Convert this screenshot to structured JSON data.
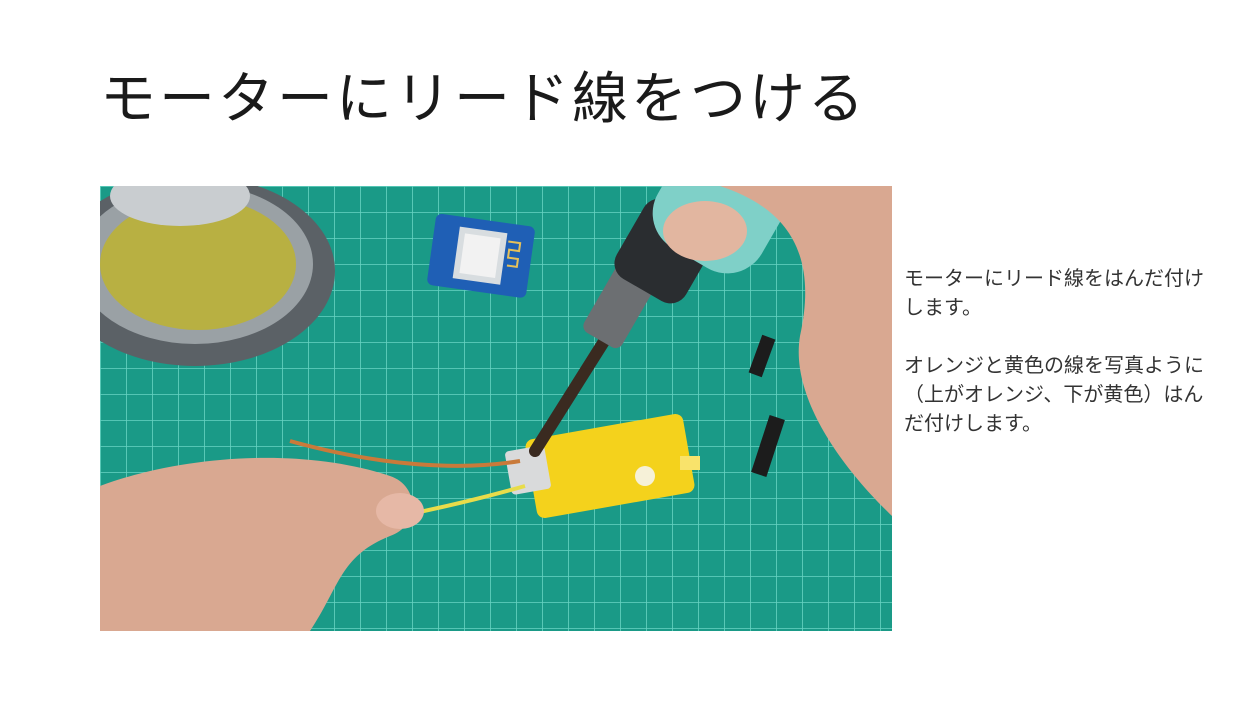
{
  "slide": {
    "title": "モーターにリード線をつける",
    "paragraph_1": "モーターにリード線をはんだ付けします。",
    "paragraph_2": "オレンジと黄色の線を写真ように（上がオレンジ、下が黄色）はんだ付けします。"
  },
  "photo": {
    "subject": "soldering-lead-wires-to-motor",
    "colors": {
      "cutting_mat": "#1a9a87",
      "grid_line": "#6fd9c9",
      "motor_yellow": "#f4d21c",
      "orange_wire": "#c97a3a",
      "yellow_wire": "#e8dc4a",
      "iron_handle": "#7fd0c8",
      "sponge": "#b8b042",
      "skin": "#d9a891"
    }
  }
}
